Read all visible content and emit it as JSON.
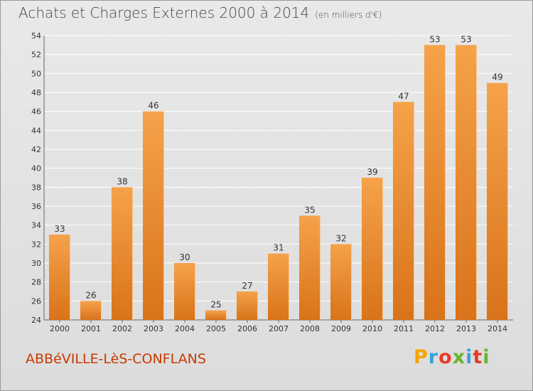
{
  "title": "Achats et Charges Externes 2000 à 2014",
  "subtitle": "(en milliers d'€)",
  "location": "ABBéVILLE-LèS-CONFLANS",
  "logo": {
    "letters": [
      "P",
      "r",
      "o",
      "x",
      "i",
      "t",
      "i"
    ],
    "colors": [
      "#f4a300",
      "#3aa0d8",
      "#e83a2a",
      "#6ab42d",
      "#3aa0d8",
      "#e83a2a",
      "#6ab42d"
    ]
  },
  "colors": {
    "bar_top": "#f5a24a",
    "bar_bottom": "#d9731a",
    "grid": "#ffffff",
    "label": "#333333"
  },
  "chart_data": {
    "type": "bar",
    "categories": [
      "2000",
      "2001",
      "2002",
      "2003",
      "2004",
      "2005",
      "2006",
      "2007",
      "2008",
      "2009",
      "2010",
      "2011",
      "2012",
      "2013",
      "2014"
    ],
    "values": [
      33,
      26,
      38,
      46,
      30,
      25,
      27,
      31,
      35,
      32,
      39,
      47,
      53,
      53,
      49
    ],
    "ylim": [
      24,
      54
    ],
    "yticks": [
      24,
      26,
      28,
      30,
      32,
      34,
      36,
      38,
      40,
      42,
      44,
      46,
      48,
      50,
      52,
      54
    ],
    "grid": true,
    "data_labels": [
      "33",
      "26",
      "38",
      "46",
      "30",
      "25",
      "27",
      "31",
      "35",
      "32",
      "39",
      "47",
      "53",
      "53",
      "49"
    ],
    "xlabel": "",
    "ylabel": ""
  }
}
